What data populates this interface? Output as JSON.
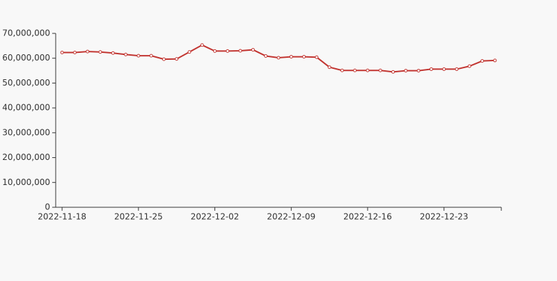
{
  "chart_data": {
    "type": "line",
    "categories": [
      "2022-11-18",
      null,
      null,
      null,
      null,
      null,
      "2022-11-25",
      null,
      null,
      null,
      null,
      null,
      "2022-12-02",
      null,
      null,
      null,
      null,
      null,
      "2022-12-09",
      null,
      null,
      null,
      null,
      null,
      "2022-12-16",
      null,
      null,
      null,
      null,
      null,
      "2022-12-23",
      null,
      null,
      null,
      null
    ],
    "series": [
      {
        "color": "#c23531",
        "values": [
          62300000,
          62300000,
          62700000,
          62500000,
          62100000,
          61500000,
          61000000,
          61000000,
          59600000,
          59700000,
          62500000,
          65300000,
          62900000,
          62900000,
          63000000,
          63400000,
          60900000,
          60200000,
          60600000,
          60600000,
          60400000,
          56400000,
          55100000,
          55100000,
          55100000,
          55100000,
          54500000,
          55000000,
          55000000,
          55600000,
          55600000,
          55600000,
          56800000,
          58900000,
          59100000
        ]
      }
    ],
    "ylim": [
      0,
      70000000
    ],
    "yticks": [
      0,
      {
        "value": 10000000,
        "label": "10,000,000"
      },
      {
        "value": 20000000,
        "label": "20,000,000"
      },
      {
        "value": 30000000,
        "label": "30,000,000"
      },
      {
        "value": 40000000,
        "label": "40,000,000"
      },
      {
        "value": 50000000,
        "label": "50,000,000"
      },
      {
        "value": 60000000,
        "label": "60,000,000"
      },
      {
        "value": 70000000,
        "label": "70,000,000"
      }
    ],
    "grid": false
  }
}
